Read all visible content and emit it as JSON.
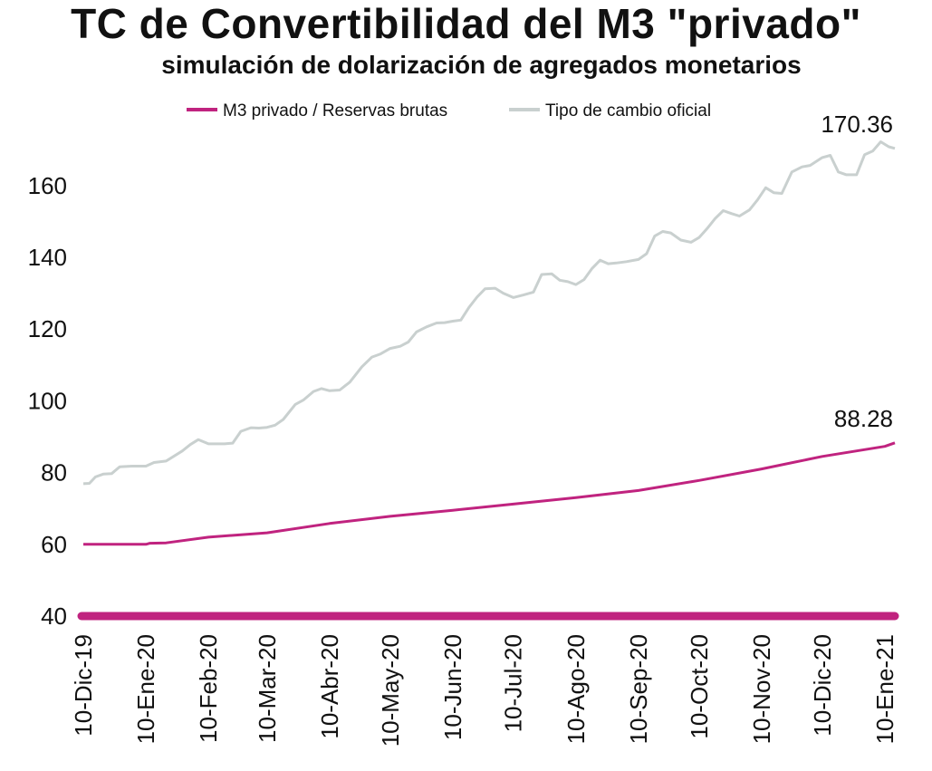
{
  "chart_data": {
    "type": "line",
    "title": "TC de Convertibilidad del M3 \"privado\"",
    "subtitle": "simulación de dolarización de agregados monetarios",
    "xlabel": "",
    "ylabel": "",
    "ylim": [
      38,
      172
    ],
    "yticks": [
      40,
      60,
      80,
      100,
      120,
      140,
      160
    ],
    "x_range": [
      "2019-12-10",
      "2021-01-15"
    ],
    "x_tick_labels": [
      "10-Dic-19",
      "10-Ene-20",
      "10-Feb-20",
      "10-Mar-20",
      "10-Abr-20",
      "10-May-20",
      "10-Jun-20",
      "10-Jul-20",
      "10-Ago-20",
      "10-Sep-20",
      "10-Oct-20",
      "10-Nov-20",
      "10-Dic-20",
      "10-Ene-21"
    ],
    "x_tick_dates": [
      "2019-12-10",
      "2020-01-10",
      "2020-02-10",
      "2020-03-10",
      "2020-04-10",
      "2020-05-10",
      "2020-06-10",
      "2020-07-10",
      "2020-08-10",
      "2020-09-10",
      "2020-10-10",
      "2020-11-10",
      "2020-12-10",
      "2021-01-10"
    ],
    "legend_position": "top",
    "grid": false,
    "series": [
      {
        "name": "M3 privado / Reservas brutas",
        "color": "#c0237f",
        "end_label": "88.28",
        "points": [
          [
            "2019-12-10",
            60.0
          ],
          [
            "2020-01-10",
            60.0
          ],
          [
            "2020-01-12",
            60.3
          ],
          [
            "2020-01-20",
            60.4
          ],
          [
            "2020-02-10",
            62.0
          ],
          [
            "2020-03-10",
            63.2
          ],
          [
            "2020-04-10",
            65.8
          ],
          [
            "2020-05-10",
            67.8
          ],
          [
            "2020-06-10",
            69.5
          ],
          [
            "2020-07-10",
            71.2
          ],
          [
            "2020-08-10",
            73.0
          ],
          [
            "2020-09-10",
            75.0
          ],
          [
            "2020-10-10",
            77.8
          ],
          [
            "2020-11-10",
            81.0
          ],
          [
            "2020-12-10",
            84.5
          ],
          [
            "2021-01-10",
            87.3
          ],
          [
            "2021-01-15",
            88.28
          ]
        ]
      },
      {
        "name": "Tipo de cambio oficial",
        "color": "#c9d0cf",
        "end_label": "170.36",
        "points": [
          [
            "2019-12-10",
            76.9
          ],
          [
            "2019-12-13",
            77.0
          ],
          [
            "2019-12-16",
            78.8
          ],
          [
            "2019-12-20",
            79.6
          ],
          [
            "2019-12-24",
            79.7
          ],
          [
            "2019-12-28",
            81.6
          ],
          [
            "2020-01-03",
            81.8
          ],
          [
            "2020-01-10",
            81.8
          ],
          [
            "2020-01-14",
            82.8
          ],
          [
            "2020-01-20",
            83.2
          ],
          [
            "2020-01-28",
            86.0
          ],
          [
            "2020-02-01",
            87.8
          ],
          [
            "2020-02-05",
            89.2
          ],
          [
            "2020-02-10",
            88.0
          ],
          [
            "2020-02-18",
            88.0
          ],
          [
            "2020-02-22",
            88.2
          ],
          [
            "2020-02-26",
            91.5
          ],
          [
            "2020-03-02",
            92.5
          ],
          [
            "2020-03-06",
            92.4
          ],
          [
            "2020-03-10",
            92.6
          ],
          [
            "2020-03-14",
            93.2
          ],
          [
            "2020-03-18",
            94.8
          ],
          [
            "2020-03-24",
            99.0
          ],
          [
            "2020-03-28",
            100.2
          ],
          [
            "2020-04-02",
            102.6
          ],
          [
            "2020-04-06",
            103.4
          ],
          [
            "2020-04-10",
            102.8
          ],
          [
            "2020-04-15",
            103.0
          ],
          [
            "2020-04-20",
            105.2
          ],
          [
            "2020-04-26",
            109.5
          ],
          [
            "2020-05-01",
            112.2
          ],
          [
            "2020-05-05",
            113.0
          ],
          [
            "2020-05-10",
            114.6
          ],
          [
            "2020-05-15",
            115.2
          ],
          [
            "2020-05-19",
            116.4
          ],
          [
            "2020-05-23",
            119.2
          ],
          [
            "2020-05-28",
            120.6
          ],
          [
            "2020-06-02",
            121.7
          ],
          [
            "2020-06-06",
            121.8
          ],
          [
            "2020-06-10",
            122.2
          ],
          [
            "2020-06-14",
            122.5
          ],
          [
            "2020-06-18",
            126.0
          ],
          [
            "2020-06-22",
            128.9
          ],
          [
            "2020-06-26",
            131.2
          ],
          [
            "2020-07-01",
            131.4
          ],
          [
            "2020-07-05",
            130.0
          ],
          [
            "2020-07-10",
            128.8
          ],
          [
            "2020-07-15",
            129.5
          ],
          [
            "2020-07-20",
            130.3
          ],
          [
            "2020-07-24",
            135.2
          ],
          [
            "2020-07-29",
            135.4
          ],
          [
            "2020-08-02",
            133.6
          ],
          [
            "2020-08-06",
            133.2
          ],
          [
            "2020-08-10",
            132.4
          ],
          [
            "2020-08-14",
            133.8
          ],
          [
            "2020-08-18",
            136.9
          ],
          [
            "2020-08-22",
            139.2
          ],
          [
            "2020-08-26",
            138.2
          ],
          [
            "2020-08-30",
            138.4
          ],
          [
            "2020-09-04",
            138.8
          ],
          [
            "2020-09-10",
            139.4
          ],
          [
            "2020-09-14",
            141.0
          ],
          [
            "2020-09-18",
            145.9
          ],
          [
            "2020-09-22",
            147.2
          ],
          [
            "2020-09-26",
            146.8
          ],
          [
            "2020-10-01",
            144.8
          ],
          [
            "2020-10-06",
            144.2
          ],
          [
            "2020-10-10",
            145.5
          ],
          [
            "2020-10-14",
            148.0
          ],
          [
            "2020-10-18",
            150.8
          ],
          [
            "2020-10-22",
            153.0
          ],
          [
            "2020-10-26",
            152.2
          ],
          [
            "2020-10-30",
            151.5
          ],
          [
            "2020-11-04",
            153.2
          ],
          [
            "2020-11-08",
            156.0
          ],
          [
            "2020-11-12",
            159.4
          ],
          [
            "2020-11-16",
            158.0
          ],
          [
            "2020-11-20",
            157.8
          ],
          [
            "2020-11-25",
            163.8
          ],
          [
            "2020-11-30",
            165.2
          ],
          [
            "2020-12-04",
            165.6
          ],
          [
            "2020-12-10",
            167.8
          ],
          [
            "2020-12-14",
            168.4
          ],
          [
            "2020-12-18",
            163.8
          ],
          [
            "2020-12-22",
            163.0
          ],
          [
            "2020-12-27",
            163.0
          ],
          [
            "2020-12-31",
            168.6
          ],
          [
            "2021-01-04",
            169.6
          ],
          [
            "2021-01-08",
            172.2
          ],
          [
            "2021-01-12",
            170.8
          ],
          [
            "2021-01-15",
            170.36
          ]
        ]
      }
    ]
  }
}
